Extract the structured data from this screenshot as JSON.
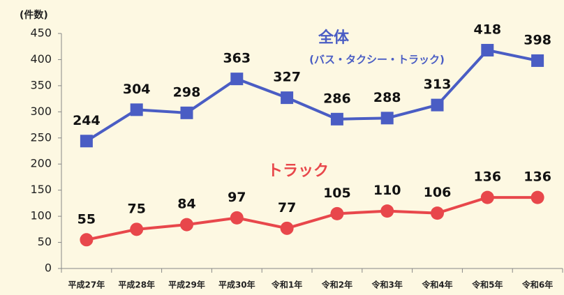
{
  "chart_data": {
    "type": "line",
    "y_axis_label": "(件数)",
    "categories": [
      "平成27年",
      "平成28年",
      "平成29年",
      "平成30年",
      "令和1年",
      "令和2年",
      "令和3年",
      "令和4年",
      "令和5年",
      "令和6年"
    ],
    "series": [
      {
        "name": "全体",
        "subtitle": "(バス・タクシー・トラック)",
        "color": "#4a5dc4",
        "marker": "square",
        "values": [
          244,
          304,
          298,
          363,
          327,
          286,
          288,
          313,
          418,
          398
        ]
      },
      {
        "name": "トラック",
        "color": "#e8474b",
        "marker": "circle",
        "values": [
          55,
          75,
          84,
          97,
          77,
          105,
          110,
          106,
          136,
          136
        ]
      }
    ],
    "ylim": [
      0,
      450
    ],
    "yticks": [
      0,
      50,
      100,
      150,
      200,
      250,
      300,
      350,
      400,
      450
    ],
    "grid": false
  }
}
